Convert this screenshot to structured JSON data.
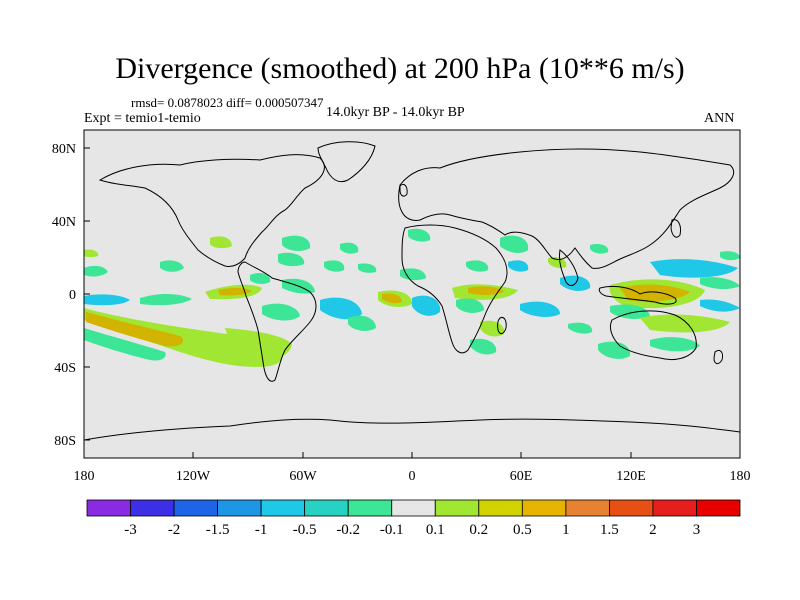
{
  "title": "Divergence (smoothed) at 200 hPa (10**6 m/s)",
  "stats_line": "rmsd= 0.0878023 diff= 0.000507347",
  "expt_line": "Expt = temio1-temio",
  "period_line": "14.0kyr BP - 14.0kyr BP",
  "season_label": "ANN",
  "lon_ticks": [
    "180",
    "120W",
    "60W",
    "0",
    "60E",
    "120E",
    "180"
  ],
  "lat_ticks": [
    "80N",
    "40N",
    "0",
    "40S",
    "80S"
  ],
  "colorbar": {
    "labels": [
      "-3",
      "-2",
      "-1.5",
      "-1",
      "-0.5",
      "-0.2",
      "-0.1",
      "0.1",
      "0.2",
      "0.5",
      "1",
      "1.5",
      "2",
      "3"
    ],
    "colors": [
      "#8a2be2",
      "#3c2fe6",
      "#1e64e6",
      "#1e96e6",
      "#1ec8e6",
      "#28d2c3",
      "#3ce696",
      "#e6e6e6",
      "#a0e632",
      "#d2d200",
      "#e6b400",
      "#e68232",
      "#e65014",
      "#e61e1e",
      "#e60000"
    ]
  },
  "colors": {
    "ocean": "#e6e6e6",
    "pos_weak": "#a0e632",
    "pos_mid": "#d2b400",
    "neg_weak": "#3ce696",
    "neg_mid": "#1ec8e6"
  }
}
